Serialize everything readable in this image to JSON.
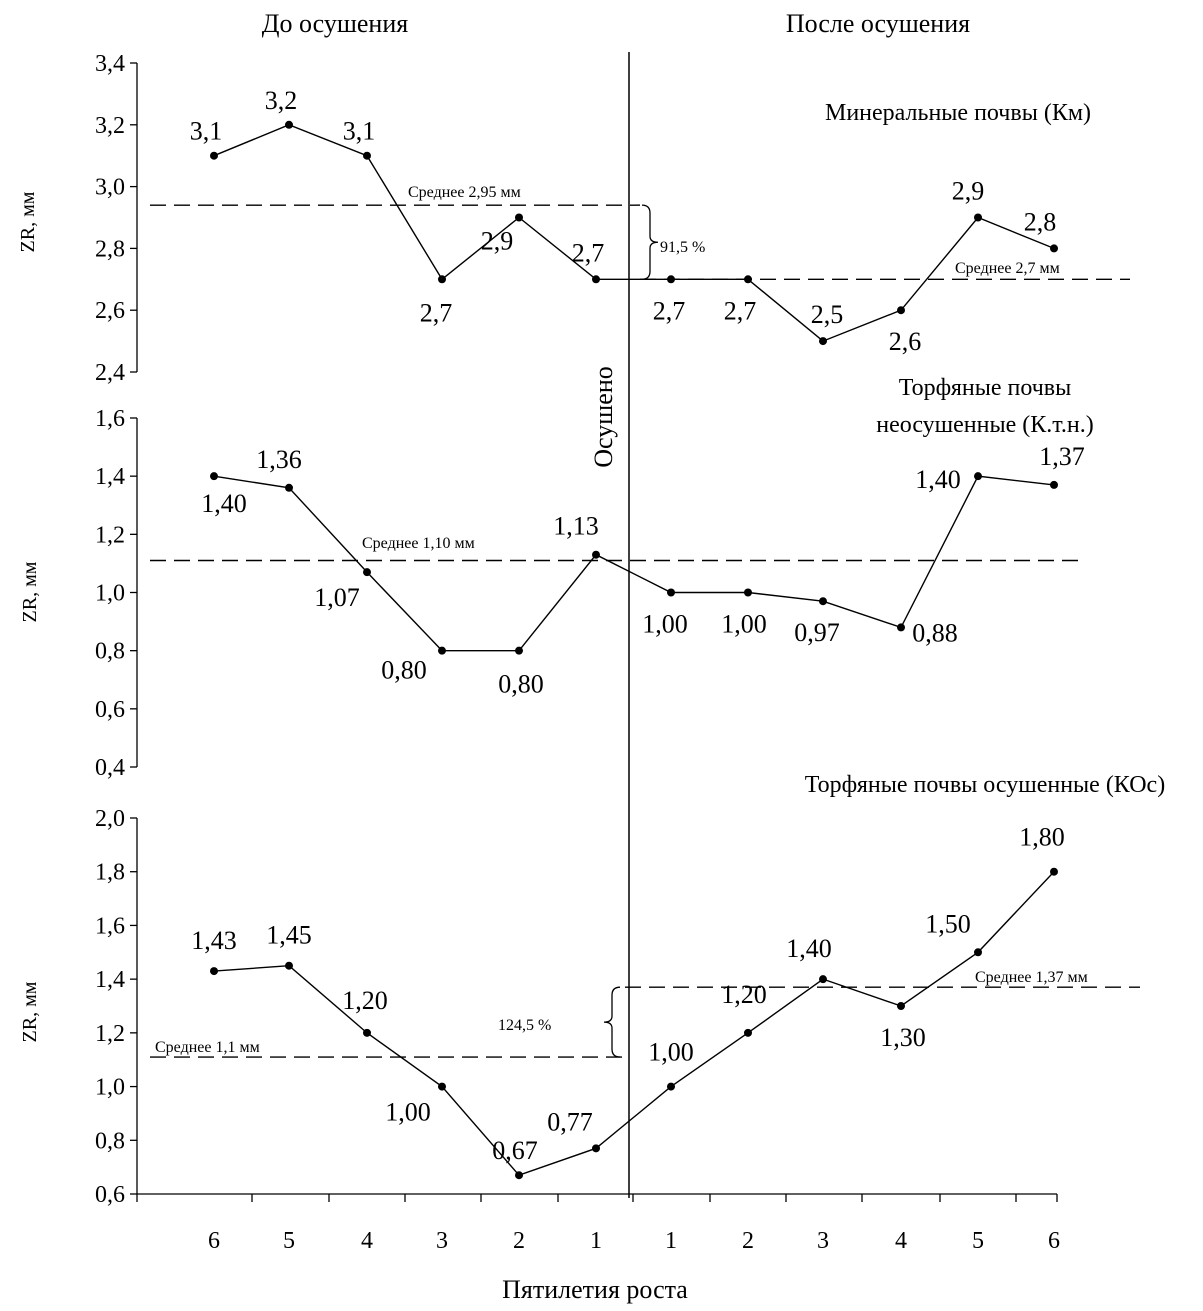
{
  "headers": {
    "before": "До осушения",
    "after": "После осушения",
    "drained_marker": "Осушено"
  },
  "x_axis": {
    "label": "Пятилетия роста",
    "tick_labels": [
      "6",
      "5",
      "4",
      "3",
      "2",
      "1",
      "1",
      "2",
      "3",
      "4",
      "5",
      "6"
    ]
  },
  "chart_data": [
    {
      "type": "line",
      "title": "Минеральные почвы (Км)",
      "ylabel": "ZR, мм",
      "ylim": [
        2.4,
        3.4
      ],
      "y_ticks": [
        "2,4",
        "2,6",
        "2,8",
        "3,0",
        "3,2",
        "3,4"
      ],
      "categories": [
        "6",
        "5",
        "4",
        "3",
        "2",
        "1",
        "1",
        "2",
        "3",
        "4",
        "5",
        "6"
      ],
      "values": [
        3.1,
        3.2,
        3.1,
        2.7,
        2.9,
        2.7,
        2.7,
        2.7,
        2.5,
        2.6,
        2.9,
        2.8
      ],
      "data_labels": [
        "3,1",
        "3,2",
        "3,1",
        "2,7",
        "2,9",
        "2,7",
        "2,7",
        "2,7",
        "2,5",
        "2,6",
        "2,9",
        "2,8"
      ],
      "means": [
        {
          "label": "Среднее 2,95 мм",
          "value": 2.94
        },
        {
          "label": "Среднее 2,7 мм",
          "value": 2.7
        }
      ],
      "change_label": "91,5 %"
    },
    {
      "type": "line",
      "title_lines": [
        "Торфяные почвы",
        "неосушенные (К.т.н.)"
      ],
      "ylabel": "ZR, мм",
      "ylim": [
        0.4,
        1.6
      ],
      "y_ticks": [
        "0,4",
        "0,6",
        "0,8",
        "1,0",
        "1,2",
        "1,4",
        "1,6"
      ],
      "categories": [
        "6",
        "5",
        "4",
        "3",
        "2",
        "1",
        "1",
        "2",
        "3",
        "4",
        "5",
        "6"
      ],
      "values": [
        1.4,
        1.36,
        1.07,
        0.8,
        0.8,
        1.13,
        1.0,
        1.0,
        0.97,
        0.88,
        1.4,
        1.37
      ],
      "data_labels": [
        "1,40",
        "1,36",
        "1,07",
        "0,80",
        "0,80",
        "1,13",
        "1,00",
        "1,00",
        "0,97",
        "0,88",
        "1,40",
        "1,37"
      ],
      "means": [
        {
          "label": "Среднее 1,10 мм",
          "value": 1.11
        }
      ]
    },
    {
      "type": "line",
      "title": "Торфяные почвы осушенные (КОс)",
      "ylabel": "ZR, мм",
      "ylim": [
        0.6,
        2.0
      ],
      "y_ticks": [
        "0,6",
        "0,8",
        "1,0",
        "1,2",
        "1,4",
        "1,6",
        "1,8",
        "2,0"
      ],
      "categories": [
        "6",
        "5",
        "4",
        "3",
        "2",
        "1",
        "1",
        "2",
        "3",
        "4",
        "5",
        "6"
      ],
      "values": [
        1.43,
        1.45,
        1.2,
        1.0,
        0.67,
        0.77,
        1.0,
        1.2,
        1.4,
        1.3,
        1.5,
        1.8
      ],
      "data_labels": [
        "1,43",
        "1,45",
        "1,20",
        "1,00",
        "0,67",
        "0,77",
        "1,00",
        "1,20",
        "1,40",
        "1,30",
        "1,50",
        "1,80"
      ],
      "means": [
        {
          "label": "Среднее 1,1 мм",
          "value": 1.11
        },
        {
          "label": "Среднее 1,37 мм",
          "value": 1.37
        }
      ],
      "change_label": "124,5 %"
    }
  ]
}
